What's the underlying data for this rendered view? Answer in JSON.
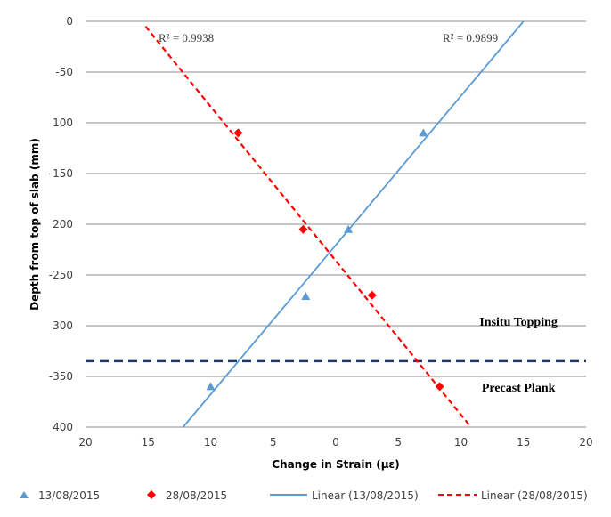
{
  "chart_data": {
    "type": "scatter",
    "xlabel": "Change in Strain (με)",
    "ylabel": "Depth from top of slab (mm)",
    "xlim": [
      -20,
      20
    ],
    "ylim": [
      -400,
      0
    ],
    "x_tick_values": [
      -20,
      -15,
      -10,
      -5,
      0,
      5,
      10,
      15,
      20
    ],
    "x_tick_labels": [
      "20",
      "15",
      "10",
      "5",
      "0",
      "5",
      "10",
      "15",
      "20"
    ],
    "y_tick_values": [
      0,
      -50,
      -100,
      -150,
      -200,
      -250,
      -300,
      -350,
      -400
    ],
    "y_tick_labels": [
      "0",
      "-50",
      "100",
      "-150",
      "200",
      "-250",
      "300",
      "-350",
      "400"
    ],
    "grid": true,
    "legend_position": "bottom",
    "series": [
      {
        "name": "13/08/2015",
        "marker": "triangle",
        "color": "#5b9bd5",
        "points": [
          [
            7,
            -110
          ],
          [
            1,
            -205
          ],
          [
            -2.4,
            -271
          ],
          [
            -10,
            -360
          ]
        ]
      },
      {
        "name": "28/08/2015",
        "marker": "diamond",
        "color": "#ff0000",
        "points": [
          [
            -7.8,
            -110
          ],
          [
            -2.6,
            -205
          ],
          [
            2.9,
            -270
          ],
          [
            8.3,
            -360
          ]
        ]
      }
    ],
    "trendlines": [
      {
        "name": "Linear (13/08/2015)",
        "color": "#5b9bd5",
        "style": "solid",
        "from": [
          -12.2,
          -400
        ],
        "to": [
          15,
          0
        ],
        "r2_label": "R² = 0.9899"
      },
      {
        "name": "Linear (28/08/2015)",
        "color": "#ff0000",
        "style": "dashed",
        "from": [
          -15.2,
          -5
        ],
        "to": [
          10.8,
          -400
        ],
        "r2_label": "R² = 0.9938"
      }
    ],
    "reference_line": {
      "y": -335,
      "color": "#1f3864",
      "style": "dashed"
    },
    "annotations": [
      {
        "text": "Insitu Topping",
        "x": 14.6,
        "y": -300
      },
      {
        "text": "Precast Plank",
        "x": 14.6,
        "y": -365
      }
    ]
  }
}
